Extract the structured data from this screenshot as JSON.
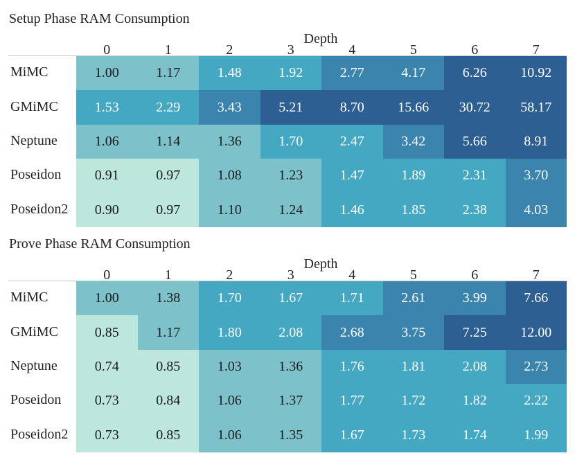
{
  "chart_data": [
    {
      "type": "heatmap",
      "title": "Setup Phase RAM Consumption",
      "xlabel": "Depth",
      "ylabel": "",
      "columns": [
        "0",
        "1",
        "2",
        "3",
        "4",
        "5",
        "6",
        "7"
      ],
      "rows": [
        "MiMC",
        "GMiMC",
        "Neptune",
        "Poseidon",
        "Poseidon2"
      ],
      "values": [
        [
          "1.00",
          "1.17",
          "1.48",
          "1.92",
          "2.77",
          "4.17",
          "6.26",
          "10.92"
        ],
        [
          "1.53",
          "2.29",
          "3.43",
          "5.21",
          "8.70",
          "15.66",
          "30.72",
          "58.17"
        ],
        [
          "1.06",
          "1.14",
          "1.36",
          "1.70",
          "2.47",
          "3.42",
          "5.66",
          "8.91"
        ],
        [
          "0.91",
          "0.97",
          "1.08",
          "1.23",
          "1.47",
          "1.89",
          "2.31",
          "3.70"
        ],
        [
          "0.90",
          "0.97",
          "1.10",
          "1.24",
          "1.46",
          "1.85",
          "2.38",
          "4.03"
        ]
      ]
    },
    {
      "type": "heatmap",
      "title": "Prove Phase RAM Consumption",
      "xlabel": "Depth",
      "ylabel": "",
      "columns": [
        "0",
        "1",
        "2",
        "3",
        "4",
        "5",
        "6",
        "7"
      ],
      "rows": [
        "MiMC",
        "GMiMC",
        "Neptune",
        "Poseidon",
        "Poseidon2"
      ],
      "values": [
        [
          "1.00",
          "1.38",
          "1.70",
          "1.67",
          "1.71",
          "2.61",
          "3.99",
          "7.66"
        ],
        [
          "0.85",
          "1.17",
          "1.80",
          "2.08",
          "2.68",
          "3.75",
          "7.25",
          "12.00"
        ],
        [
          "0.74",
          "0.85",
          "1.03",
          "1.36",
          "1.76",
          "1.81",
          "2.08",
          "2.73"
        ],
        [
          "0.73",
          "0.84",
          "1.06",
          "1.37",
          "1.77",
          "1.72",
          "1.82",
          "2.22"
        ],
        [
          "0.73",
          "0.85",
          "1.06",
          "1.35",
          "1.67",
          "1.73",
          "1.74",
          "1.99"
        ]
      ]
    }
  ],
  "palette": {
    "level_colors": [
      "#bde6dc",
      "#7dc2cb",
      "#45a8c2",
      "#3a84ad",
      "#2d5f92"
    ],
    "dark_text": "#1a1a1a",
    "light_text": "#ffffff"
  }
}
